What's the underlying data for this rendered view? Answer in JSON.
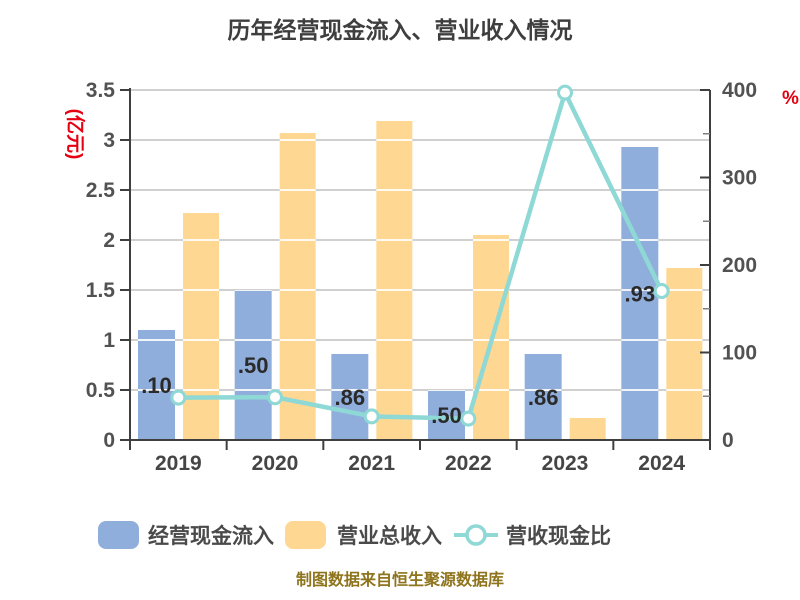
{
  "title": "历年经营现金流入、营业收入情况",
  "footer": "制图数据来自恒生聚源数据库",
  "colors": {
    "bar_blue": "#90aedb",
    "bar_yellow": "#fed893",
    "line_teal": "#8ed8d5",
    "axis": "#3f3f3f",
    "grid": "#c9c9c9",
    "grid_over_bar": "#ffffff",
    "minor_tick": "#808080",
    "unit_red": "#e60012",
    "footer_gold": "#8e741c"
  },
  "chart_data": {
    "type": "bar+line",
    "title": "历年经营现金流入、营业收入情况",
    "categories": [
      "2019",
      "2020",
      "2021",
      "2022",
      "2023",
      "2024"
    ],
    "series": [
      {
        "name": "经营现金流入",
        "kind": "bar",
        "axis": "left",
        "color_key": "bar_blue",
        "values": [
          1.1,
          1.5,
          0.86,
          0.5,
          0.86,
          2.93
        ],
        "visible_value_labels": [
          ".10",
          ".50",
          ".86",
          ".50",
          ".86",
          ".93"
        ]
      },
      {
        "name": "营业总收入",
        "kind": "bar",
        "axis": "left",
        "color_key": "bar_yellow",
        "values": [
          2.27,
          3.07,
          3.19,
          2.05,
          0.22,
          1.72
        ]
      },
      {
        "name": "营收现金比",
        "kind": "line",
        "axis": "right",
        "color_key": "line_teal",
        "values": [
          48.5,
          48.9,
          27.0,
          24.4,
          397.0,
          170.3
        ]
      }
    ],
    "left_axis": {
      "label": "(亿元)",
      "min": 0,
      "max": 3.5,
      "step": 0.5,
      "ticks": [
        "0",
        "0.5",
        "1",
        "1.5",
        "2",
        "2.5",
        "3",
        "3.5"
      ]
    },
    "right_axis": {
      "label": "%",
      "min": 0,
      "max": 400,
      "step": 100,
      "minor_step": 50,
      "ticks": [
        "0",
        "100",
        "200",
        "300",
        "400"
      ]
    },
    "grid": true,
    "legend_position": "bottom"
  }
}
